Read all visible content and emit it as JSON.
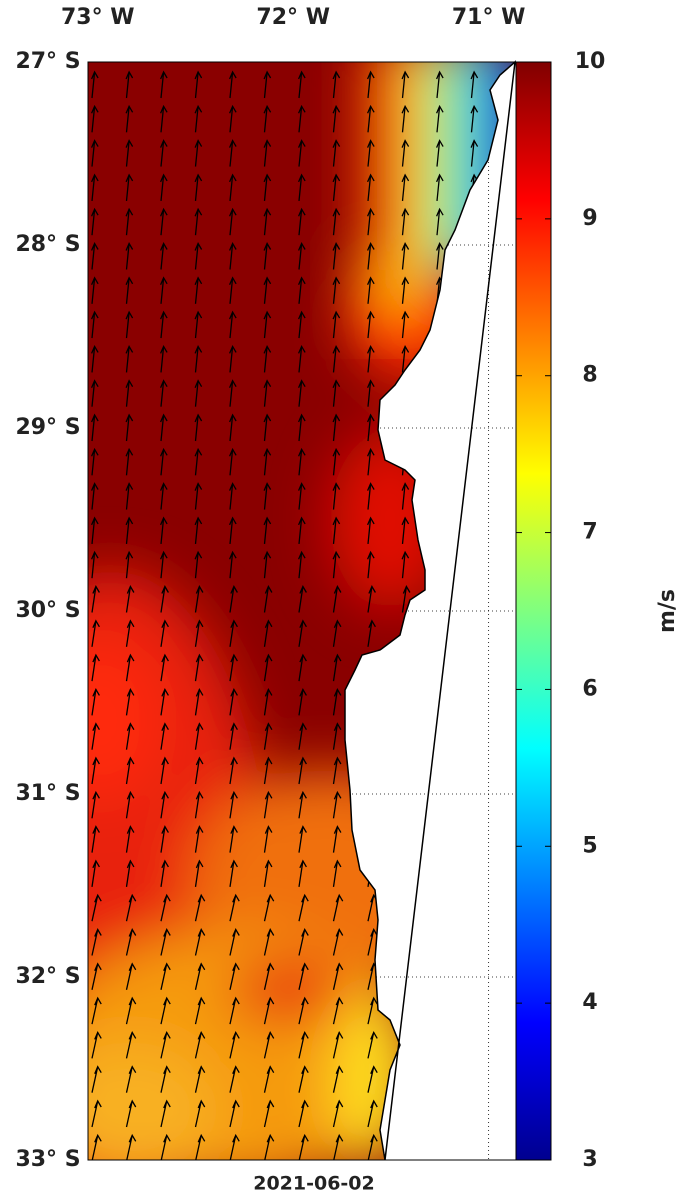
{
  "map": {
    "xlim": [
      -73.05,
      -70.86
    ],
    "ylim": [
      -33,
      -27
    ],
    "lon_ticks": [
      {
        "value": -73,
        "label": "73° W"
      },
      {
        "value": -72,
        "label": "72° W"
      },
      {
        "value": -71,
        "label": "71° W"
      }
    ],
    "lat_ticks": [
      {
        "value": -27,
        "label": "27° S"
      },
      {
        "value": -28,
        "label": "28° S"
      },
      {
        "value": -29,
        "label": "29° S"
      },
      {
        "value": -30,
        "label": "30° S"
      },
      {
        "value": -31,
        "label": "31° S"
      },
      {
        "value": -32,
        "label": "32° S"
      },
      {
        "value": -33,
        "label": "33° S"
      }
    ]
  },
  "colorbar": {
    "label": "m/s",
    "range": [
      3,
      10
    ],
    "ticks": [
      3,
      4,
      5,
      6,
      7,
      8,
      9,
      10
    ]
  },
  "date": "2021-06-02"
}
